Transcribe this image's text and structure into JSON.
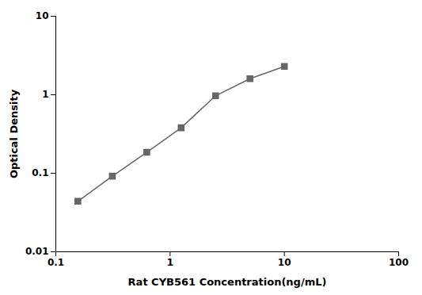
{
  "chart_data": {
    "type": "line",
    "x": [
      0.156,
      0.3125,
      0.625,
      1.25,
      2.5,
      5.0,
      10.0
    ],
    "values": [
      0.044,
      0.092,
      0.185,
      0.38,
      0.97,
      1.6,
      2.3
    ],
    "xlabel": "Rat CYB561 Concentration(ng/mL)",
    "ylabel": "Optical Density",
    "xlim": [
      0.1,
      100
    ],
    "ylim": [
      0.01,
      10
    ],
    "xticks": [
      0.1,
      1,
      10,
      100
    ],
    "yticks": [
      0.01,
      0.1,
      1,
      10
    ],
    "log": true,
    "color": "#666666",
    "marker": "square",
    "grid": false
  }
}
